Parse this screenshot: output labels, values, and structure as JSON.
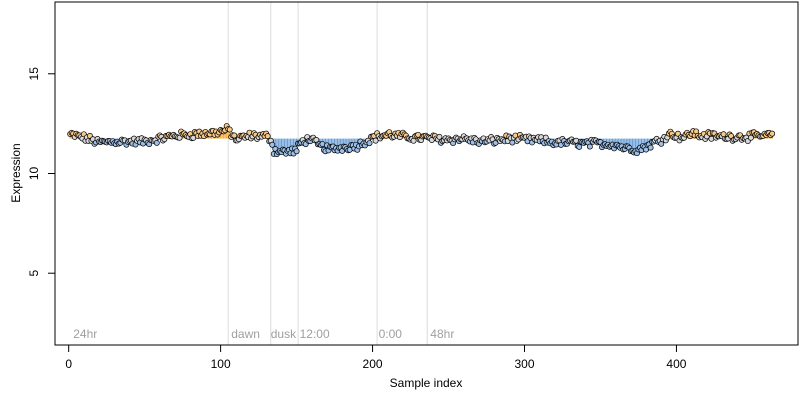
{
  "chart_data": {
    "type": "scatter",
    "title": "",
    "xlabel": "Sample index",
    "ylabel": "Expression",
    "xlim": [
      -9,
      480
    ],
    "ylim": [
      1.4,
      18.6
    ],
    "x_ticks": [
      0,
      100,
      200,
      300,
      400
    ],
    "y_ticks": [
      5,
      10,
      15
    ],
    "x_tick_labels": [
      "0",
      "100",
      "200",
      "300",
      "400"
    ],
    "y_tick_labels": [
      "5",
      "10",
      "15"
    ],
    "grid": false,
    "legend": "none",
    "vertical_lines_x": [
      105,
      133,
      151,
      203,
      236
    ],
    "annotations": [
      {
        "x": 3,
        "text": "24hr"
      },
      {
        "x": 107,
        "text": "dawn"
      },
      {
        "x": 133,
        "text": "dusk"
      },
      {
        "x": 152,
        "text": "12:00"
      },
      {
        "x": 204,
        "text": "0:00"
      },
      {
        "x": 238,
        "text": "48hr"
      }
    ],
    "baseline": 11.75,
    "n_points": 463,
    "series": [
      {
        "value_anchors": [
          [
            1,
            11.95
          ],
          [
            10,
            11.8
          ],
          [
            20,
            11.55
          ],
          [
            30,
            11.6
          ],
          [
            40,
            11.6
          ],
          [
            50,
            11.6
          ],
          [
            60,
            11.75
          ],
          [
            70,
            11.9
          ],
          [
            80,
            11.95
          ],
          [
            90,
            12.0
          ],
          [
            100,
            12.1
          ],
          [
            105,
            12.2
          ],
          [
            110,
            11.7
          ],
          [
            120,
            11.9
          ],
          [
            130,
            11.85
          ],
          [
            133,
            11.75
          ],
          [
            135,
            11.15
          ],
          [
            140,
            11.1
          ],
          [
            145,
            11.1
          ],
          [
            150,
            11.15
          ],
          [
            152,
            11.5
          ],
          [
            158,
            11.75
          ],
          [
            165,
            11.4
          ],
          [
            172,
            11.2
          ],
          [
            180,
            11.3
          ],
          [
            190,
            11.4
          ],
          [
            200,
            11.8
          ],
          [
            210,
            11.95
          ],
          [
            220,
            11.85
          ],
          [
            230,
            11.8
          ],
          [
            240,
            11.75
          ],
          [
            250,
            11.7
          ],
          [
            260,
            11.75
          ],
          [
            270,
            11.6
          ],
          [
            280,
            11.65
          ],
          [
            290,
            11.75
          ],
          [
            300,
            11.7
          ],
          [
            310,
            11.65
          ],
          [
            320,
            11.55
          ],
          [
            330,
            11.55
          ],
          [
            340,
            11.5
          ],
          [
            350,
            11.5
          ],
          [
            360,
            11.45
          ],
          [
            365,
            11.3
          ],
          [
            370,
            11.25
          ],
          [
            375,
            11.2
          ],
          [
            380,
            11.35
          ],
          [
            385,
            11.55
          ],
          [
            390,
            11.7
          ],
          [
            395,
            12.0
          ],
          [
            400,
            11.9
          ],
          [
            405,
            11.8
          ],
          [
            410,
            12.05
          ],
          [
            415,
            11.9
          ],
          [
            420,
            11.9
          ],
          [
            430,
            11.85
          ],
          [
            440,
            11.85
          ],
          [
            450,
            11.85
          ],
          [
            460,
            11.9
          ],
          [
            462,
            11.95
          ]
        ]
      }
    ]
  },
  "colors": {
    "high": "#f5a833",
    "low": "#6b9fd6",
    "point_high": "#f7c98a",
    "point_low": "#9cc0ea",
    "point_mid": "#d8d8d8",
    "point_edge": "#000000",
    "vline": "#dcdcdc",
    "annotation": "#a0a0a0"
  }
}
